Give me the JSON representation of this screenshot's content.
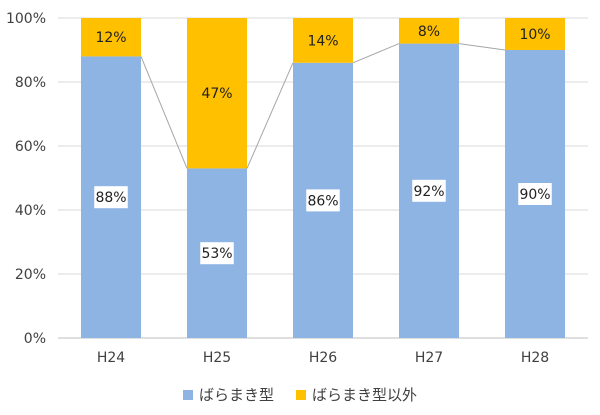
{
  "chart_data": {
    "type": "bar",
    "stacked": true,
    "percent_stacked": true,
    "categories": [
      "H24",
      "H25",
      "H26",
      "H27",
      "H28"
    ],
    "series": [
      {
        "name": "ばらまき型",
        "values": [
          88,
          53,
          86,
          92,
          90
        ],
        "color": "#8EB4E3"
      },
      {
        "name": "ばらまき型以外",
        "values": [
          12,
          47,
          14,
          8,
          10
        ],
        "color": "#FFC000"
      }
    ],
    "value_labels": [
      [
        "88%",
        "53%",
        "86%",
        "92%",
        "90%"
      ],
      [
        "12%",
        "47%",
        "14%",
        "8%",
        "10%"
      ]
    ],
    "y_ticks": [
      "0%",
      "20%",
      "40%",
      "60%",
      "80%",
      "100%"
    ],
    "ylim": [
      0,
      100
    ],
    "grid": true,
    "series_lines": true,
    "legend_position": "bottom",
    "title": "",
    "xlabel": "",
    "ylabel": ""
  }
}
